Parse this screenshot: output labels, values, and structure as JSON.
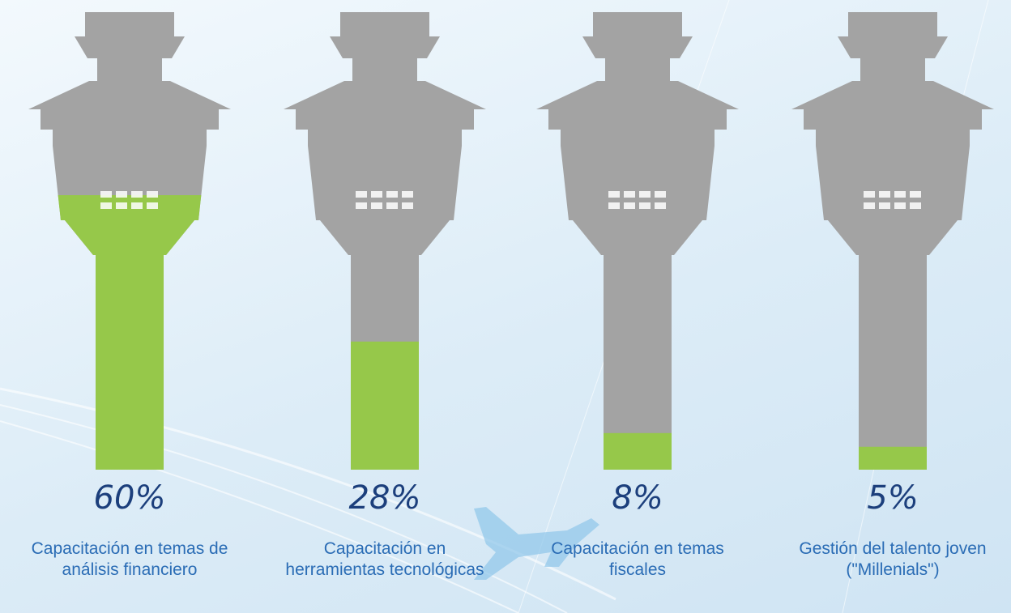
{
  "chart_data": {
    "type": "tower",
    "categories": [
      "Capacitación en temas de análisis financiero",
      "Capacitación en herramientas tecnológicas",
      "Capacitación en temas fiscales",
      "Gestión del talento joven (\"Millenials\")"
    ],
    "values": [
      60,
      28,
      8,
      5
    ],
    "value_labels": [
      "60%",
      "28%",
      "8%",
      "5%"
    ],
    "color": "#96c84a",
    "base_color": "#a3a3a3"
  }
}
